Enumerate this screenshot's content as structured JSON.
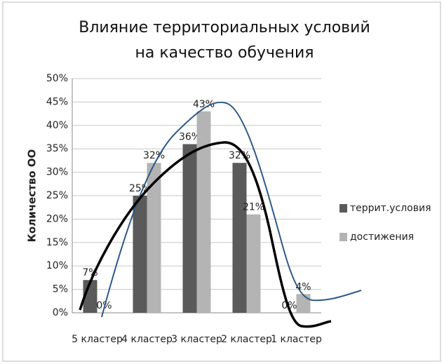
{
  "chart_data": {
    "type": "bar",
    "title": "Влияние территориальных условий на качество обучения",
    "y_label": "Количество ОО",
    "categories": [
      "5 кластер",
      "4 кластер",
      "3 кластер",
      "2 кластер",
      "1 кластер"
    ],
    "series": [
      {
        "name": "террит.условия",
        "color": "#5a5a5a",
        "values": [
          7,
          25,
          36,
          32,
          0
        ],
        "value_labels": [
          "7%",
          "25%",
          "36%",
          "32%",
          "0%"
        ]
      },
      {
        "name": "достижения",
        "color": "#b4b4b4",
        "values": [
          0,
          32,
          43,
          21,
          4
        ],
        "value_labels": [
          "0%",
          "32%",
          "43%",
          "21%",
          "4%"
        ]
      }
    ],
    "ylim": [
      0,
      50
    ],
    "yticks": [
      {
        "value": 0,
        "label": "0%"
      },
      {
        "value": 5,
        "label": "5%"
      },
      {
        "value": 10,
        "label": "10%"
      },
      {
        "value": 15,
        "label": "15%"
      },
      {
        "value": 20,
        "label": "20%"
      },
      {
        "value": 25,
        "label": "25%"
      },
      {
        "value": 30,
        "label": "30%"
      },
      {
        "value": 35,
        "label": "35%"
      },
      {
        "value": 40,
        "label": "40%"
      },
      {
        "value": 45,
        "label": "45%"
      },
      {
        "value": 50,
        "label": "50%"
      }
    ],
    "grid": true,
    "legend": "right"
  }
}
